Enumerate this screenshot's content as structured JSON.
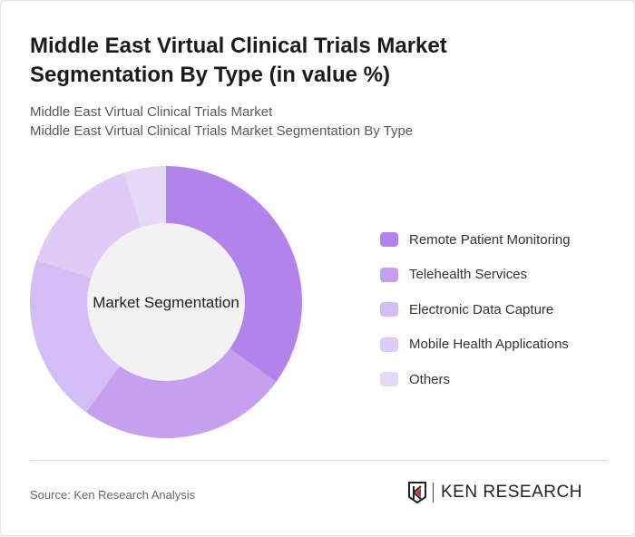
{
  "title": "Middle East Virtual Clinical Trials Market Segmentation By Type (in value %)",
  "subtitle1": "Middle East Virtual Clinical Trials Market",
  "subtitle2": "Middle East Virtual Clinical Trials Market Segmentation By Type",
  "source": "Source: Ken Research Analysis",
  "logo_text": "KEN RESEARCH",
  "chart_data": {
    "type": "pie",
    "donut": true,
    "center_label": "Market Segmentation",
    "categories": [
      "Remote Patient Monitoring",
      "Telehealth Services",
      "Electronic Data Capture",
      "Mobile Health Applications",
      "Others"
    ],
    "values": [
      35,
      25,
      20,
      15,
      5
    ],
    "colors": [
      "#b383ec",
      "#c4a0ef",
      "#d4bdf4",
      "#dfcbf6",
      "#e6d9f8"
    ],
    "legend_position": "right"
  }
}
